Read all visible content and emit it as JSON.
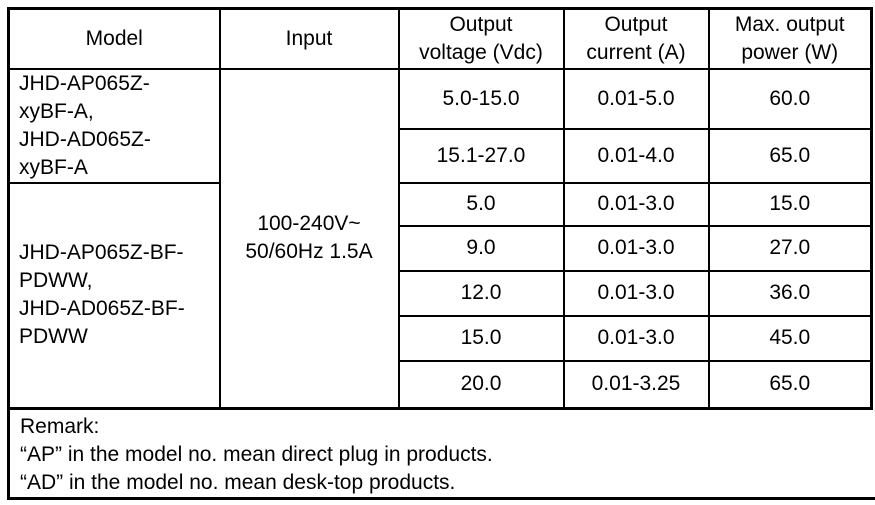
{
  "colors": {
    "background": "#ffffff",
    "border": "#000000",
    "text": "#000000"
  },
  "spec_table": {
    "headers": {
      "model": "Model",
      "input": "Input",
      "output_voltage": "Output\nvoltage (Vdc)",
      "output_current": "Output\ncurrent (A)",
      "max_output_power": "Max. output\npower (W)"
    },
    "model_groups": [
      {
        "label": "JHD-AP065Z-\nxyBF-A,\nJHD-AD065Z-\nxyBF-A"
      },
      {
        "label": "JHD-AP065Z-BF-\nPDWW,\nJHD-AD065Z-BF-\nPDWW"
      }
    ],
    "input_value": "100-240V~\n50/60Hz 1.5A",
    "rows": [
      {
        "output_voltage": "5.0-15.0",
        "output_current": "0.01-5.0",
        "max_output_power": "60.0"
      },
      {
        "output_voltage": "15.1-27.0",
        "output_current": "0.01-4.0",
        "max_output_power": "65.0"
      },
      {
        "output_voltage": "5.0",
        "output_current": "0.01-3.0",
        "max_output_power": "15.0"
      },
      {
        "output_voltage": "9.0",
        "output_current": "0.01-3.0",
        "max_output_power": "27.0"
      },
      {
        "output_voltage": "12.0",
        "output_current": "0.01-3.0",
        "max_output_power": "36.0"
      },
      {
        "output_voltage": "15.0",
        "output_current": "0.01-3.0",
        "max_output_power": "45.0"
      },
      {
        "output_voltage": "20.0",
        "output_current": "0.01-3.25",
        "max_output_power": "65.0"
      }
    ]
  },
  "remark": {
    "title": "Remark:",
    "lines": [
      "“AP” in the model no. mean direct plug in products.",
      "“AD” in the model no. mean desk-top products."
    ]
  }
}
